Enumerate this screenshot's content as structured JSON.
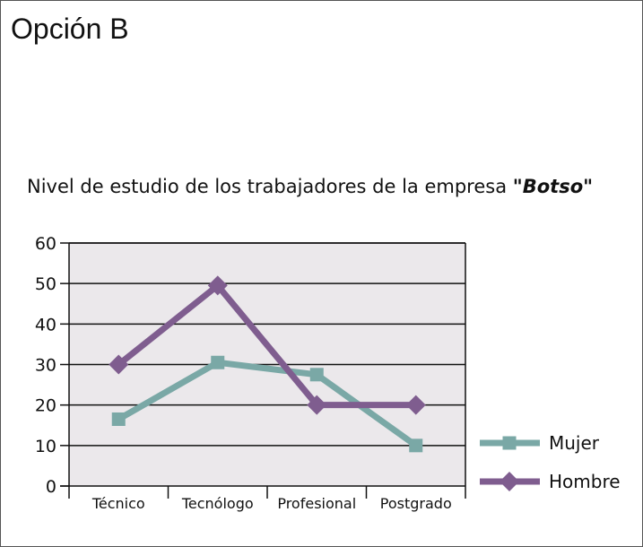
{
  "option_label": "Opción B",
  "chart_data": {
    "type": "line",
    "title": "Nivel de estudio de los trabajadores de la empresa",
    "title_emphasis": "\"Botso\"",
    "categories": [
      "Técnico",
      "Tecnólogo",
      "Profesional",
      "Postgrado"
    ],
    "series": [
      {
        "name": "Mujer",
        "values": [
          16.5,
          30.5,
          27.5,
          10
        ],
        "color": "#7aa8a6",
        "marker": "square"
      },
      {
        "name": "Hombre",
        "values": [
          30,
          49.5,
          20,
          20
        ],
        "color": "#7f5d8f",
        "marker": "diamond"
      }
    ],
    "ylim": [
      0,
      60
    ],
    "yticks": [
      0,
      10,
      20,
      30,
      40,
      50,
      60
    ],
    "xlabel": "",
    "ylabel": "",
    "grid": true,
    "plot_background": "#ebe8eb",
    "legend_position": "right"
  }
}
